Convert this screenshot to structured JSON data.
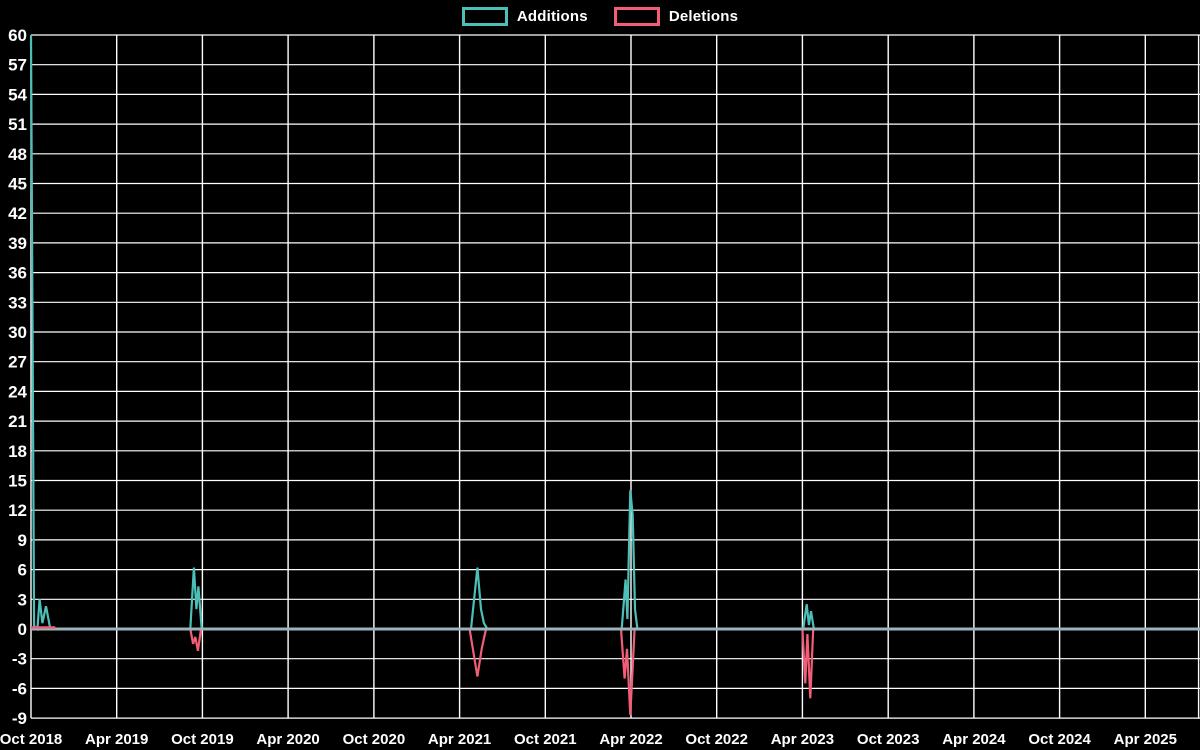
{
  "legend": [
    {
      "label": "Additions",
      "color": "#4dbfb8"
    },
    {
      "label": "Deletions",
      "color": "#f25d77"
    }
  ],
  "chart_data": {
    "type": "line",
    "title": "",
    "xlabel": "",
    "ylabel": "",
    "background": "#000000",
    "grid_color": "#ffffff",
    "text_color": "#ffffff",
    "zero_line_color": "#9cb2bc",
    "legend_position": "top-center",
    "y_axis": {
      "min": -9,
      "max": 60,
      "step": 3,
      "ticks": [
        60,
        57,
        54,
        51,
        48,
        45,
        42,
        39,
        36,
        33,
        30,
        27,
        24,
        21,
        18,
        15,
        12,
        9,
        6,
        3,
        0,
        -3,
        -6,
        -9
      ]
    },
    "x_axis": {
      "unit": "months_since_first_tick",
      "range_months": [
        0,
        81.8
      ],
      "ticks": [
        {
          "label": "Oct 2018",
          "m": 0
        },
        {
          "label": "Apr 2019",
          "m": 6
        },
        {
          "label": "Oct 2019",
          "m": 12
        },
        {
          "label": "Apr 2020",
          "m": 18
        },
        {
          "label": "Oct 2020",
          "m": 24
        },
        {
          "label": "Apr 2021",
          "m": 30
        },
        {
          "label": "Oct 2021",
          "m": 36
        },
        {
          "label": "Apr 2022",
          "m": 42
        },
        {
          "label": "Oct 2022",
          "m": 48
        },
        {
          "label": "Apr 2023",
          "m": 54
        },
        {
          "label": "Oct 2023",
          "m": 60
        },
        {
          "label": "Apr 2024",
          "m": 66
        },
        {
          "label": "Oct 2024",
          "m": 72
        },
        {
          "label": "Apr 2025",
          "m": 78
        }
      ]
    },
    "series": [
      {
        "name": "Additions",
        "color": "#4dbfb8",
        "points": [
          [
            0,
            60
          ],
          [
            0.22,
            0.3
          ],
          [
            0.45,
            0
          ],
          [
            0.6,
            3
          ],
          [
            0.8,
            0.6
          ],
          [
            1.05,
            2.3
          ],
          [
            1.35,
            0
          ],
          [
            11.15,
            0
          ],
          [
            11.4,
            6.2
          ],
          [
            11.58,
            2.0
          ],
          [
            11.72,
            4.3
          ],
          [
            11.95,
            0
          ],
          [
            30.8,
            0
          ],
          [
            31.25,
            6.2
          ],
          [
            31.5,
            2.0
          ],
          [
            31.7,
            0.6
          ],
          [
            31.95,
            0
          ],
          [
            41.35,
            0
          ],
          [
            41.62,
            5.0
          ],
          [
            41.75,
            1.0
          ],
          [
            41.95,
            14.0
          ],
          [
            42.12,
            11.5
          ],
          [
            42.28,
            2.0
          ],
          [
            42.45,
            0
          ],
          [
            54.05,
            0
          ],
          [
            54.3,
            2.5
          ],
          [
            54.45,
            0.4
          ],
          [
            54.6,
            1.8
          ],
          [
            54.8,
            0
          ],
          [
            55.3,
            0
          ]
        ]
      },
      {
        "name": "Deletions",
        "color": "#f25d77",
        "points": [
          [
            0,
            0
          ],
          [
            11.15,
            0
          ],
          [
            11.35,
            -1.5
          ],
          [
            11.5,
            -0.8
          ],
          [
            11.68,
            -2.2
          ],
          [
            11.9,
            0
          ],
          [
            30.7,
            0
          ],
          [
            31.25,
            -4.8
          ],
          [
            31.55,
            -2.0
          ],
          [
            31.85,
            0
          ],
          [
            41.3,
            0
          ],
          [
            41.55,
            -5.0
          ],
          [
            41.72,
            -2.0
          ],
          [
            41.95,
            -8.7
          ],
          [
            42.25,
            0
          ],
          [
            54.0,
            0
          ],
          [
            54.2,
            -5.5
          ],
          [
            54.35,
            -0.5
          ],
          [
            54.55,
            -7.0
          ],
          [
            54.75,
            0
          ],
          [
            55.3,
            0
          ]
        ]
      }
    ],
    "deletions_zero_visible_until_month": 1.7
  }
}
